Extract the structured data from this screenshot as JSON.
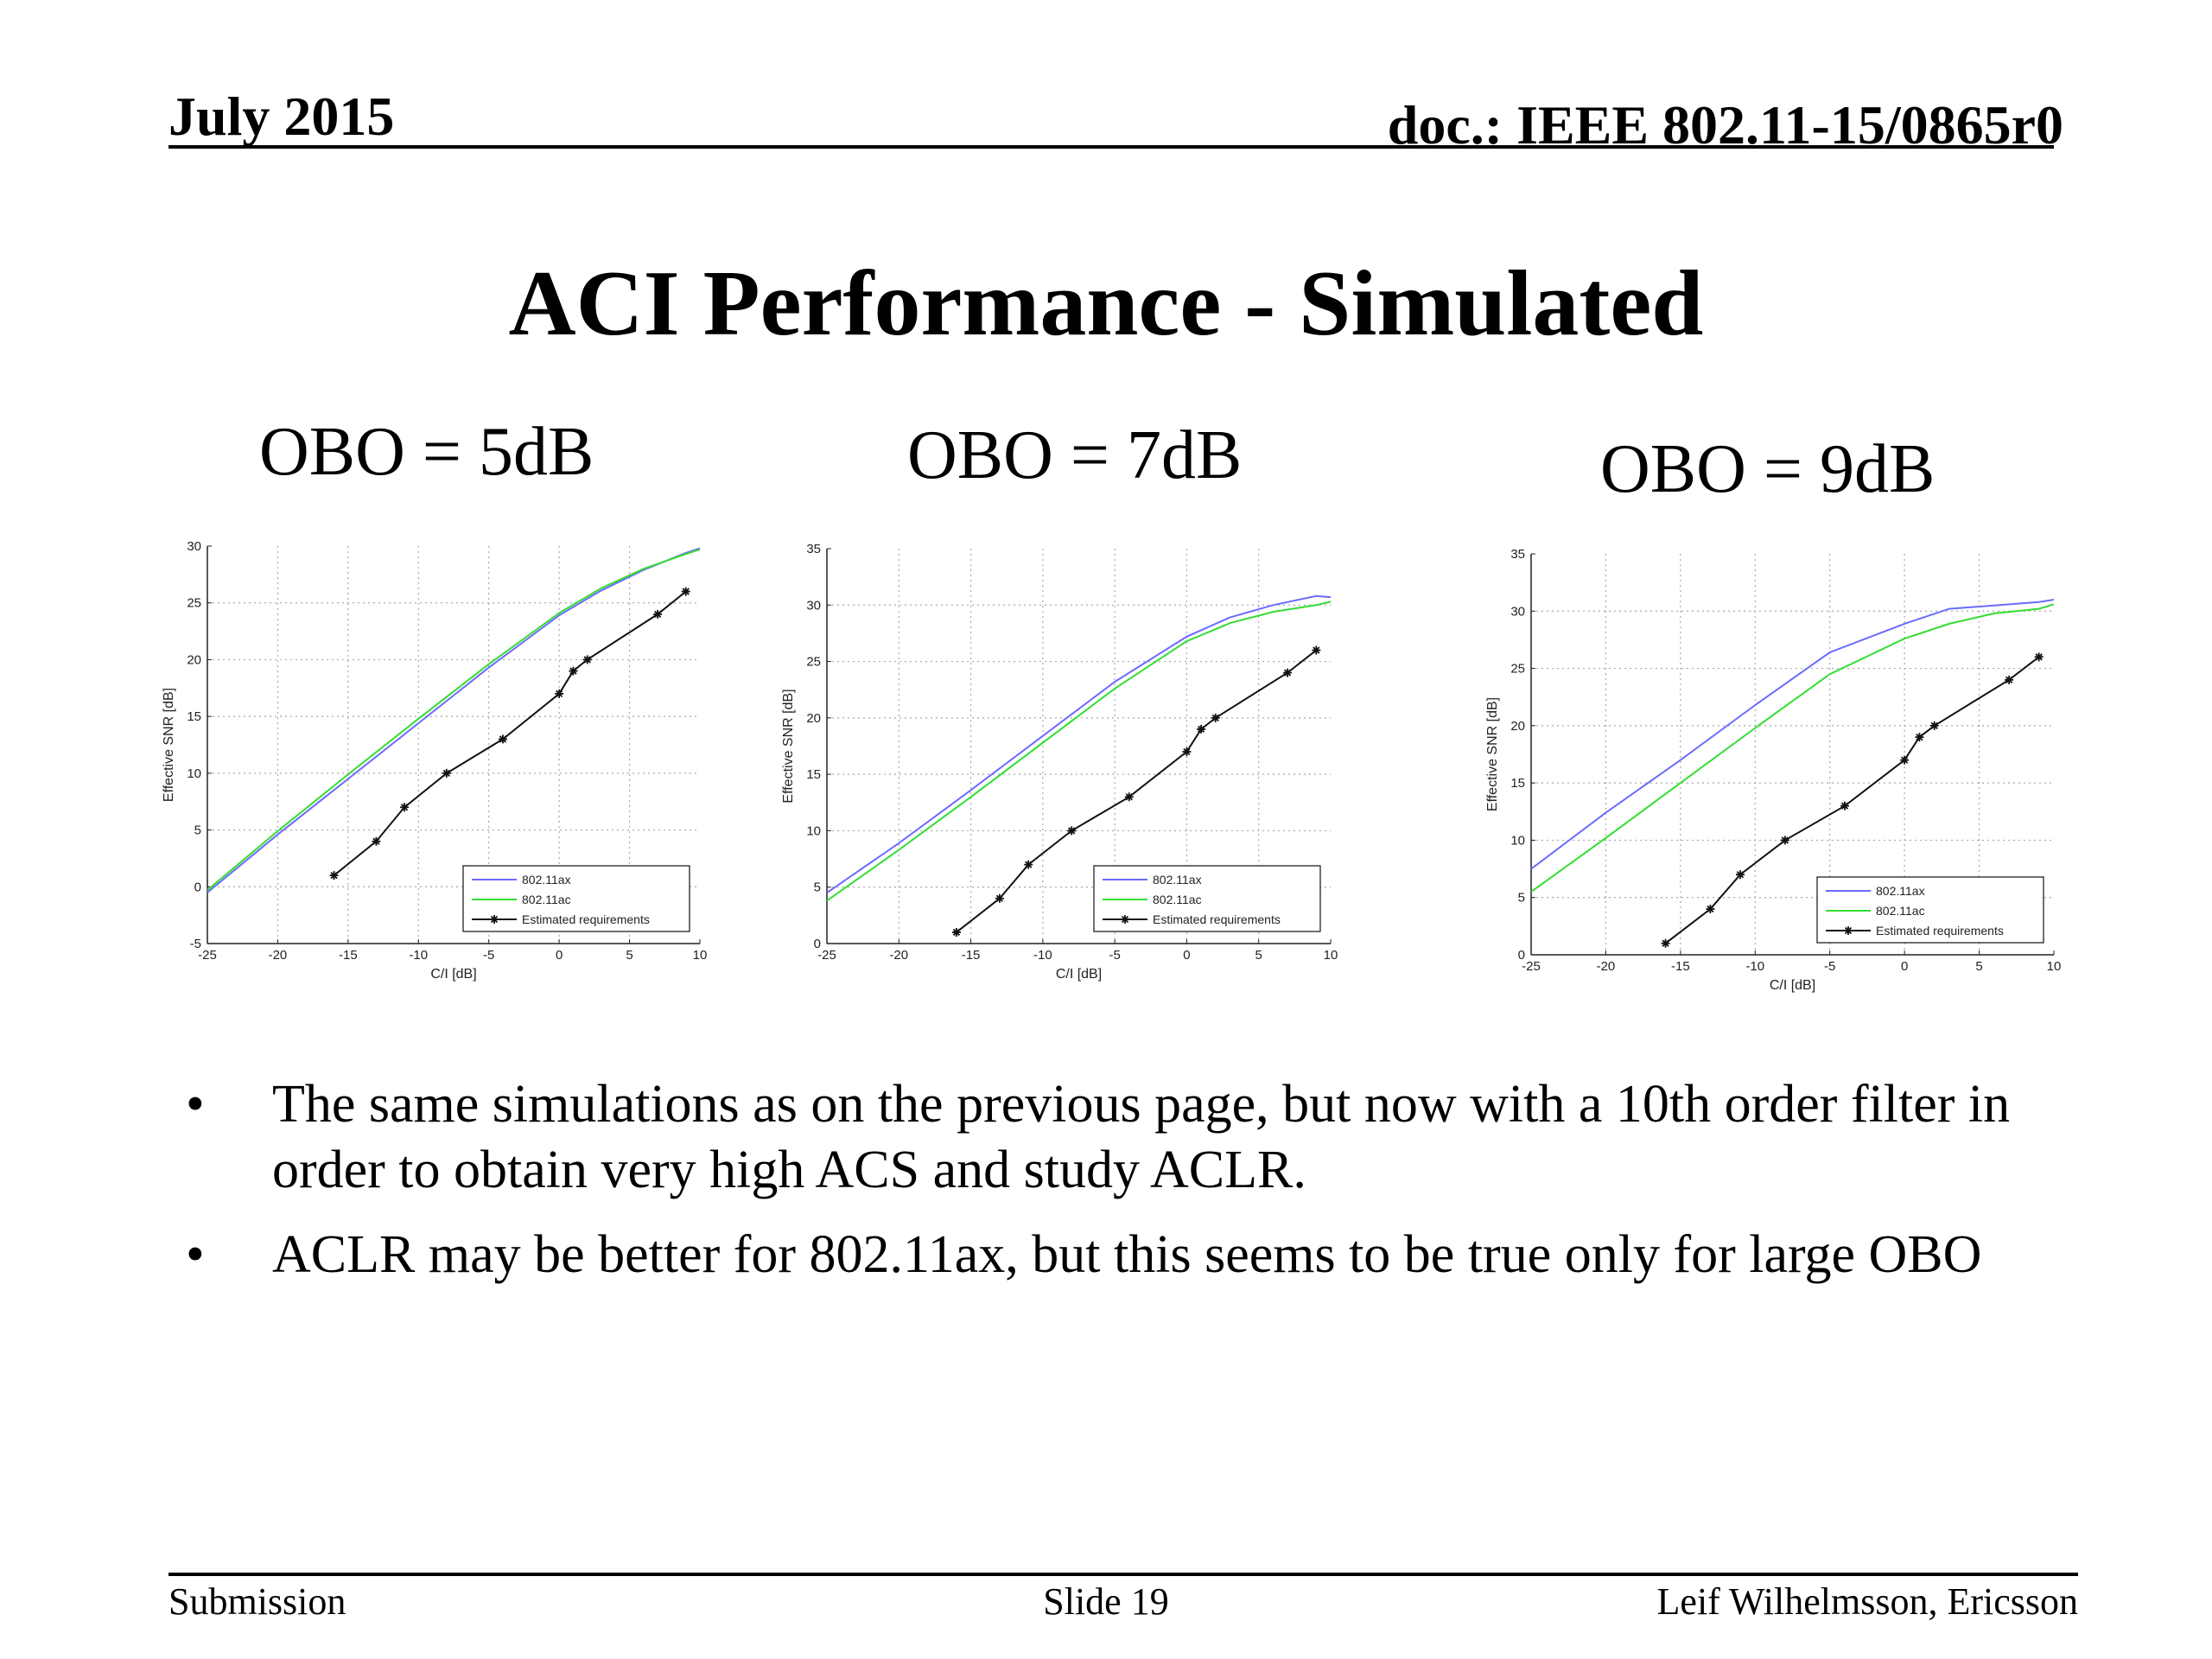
{
  "header": {
    "date": "July 2015",
    "doc": "doc.: IEEE 802.11-15/0865r0"
  },
  "title": "ACI Performance - Simulated",
  "subtitles": [
    "OBO = 5dB",
    "OBO = 7dB",
    "OBO = 9dB"
  ],
  "colors": {
    "ax": "#6b6bff",
    "ac": "#33dd33",
    "req": "#111111",
    "grid": "#a8a8a8"
  },
  "chart_data": [
    {
      "type": "line",
      "title": "OBO = 5dB",
      "xlabel": "C/I [dB]",
      "ylabel": "Effective SNR [dB]",
      "xlim": [
        -25,
        10
      ],
      "ylim": [
        -5,
        30
      ],
      "xticks": [
        -25,
        -20,
        -15,
        -10,
        -5,
        0,
        5,
        10
      ],
      "yticks": [
        -5,
        0,
        5,
        10,
        15,
        20,
        25,
        30
      ],
      "grid": true,
      "legend_position": "bottom-right",
      "series": [
        {
          "name": "802.11ax",
          "color": "#6b6bff",
          "marker": "none",
          "x": [
            -25,
            -20,
            -15,
            -10,
            -5,
            0,
            3,
            6,
            9,
            10
          ],
          "y": [
            -0.5,
            4.6,
            9.5,
            14.4,
            19.3,
            23.9,
            26.1,
            27.9,
            29.4,
            29.8
          ]
        },
        {
          "name": "802.11ac",
          "color": "#33dd33",
          "marker": "none",
          "x": [
            -25,
            -20,
            -15,
            -10,
            -5,
            0,
            3,
            6,
            9,
            10
          ],
          "y": [
            -0.3,
            4.9,
            9.9,
            14.8,
            19.6,
            24.1,
            26.3,
            28.0,
            29.3,
            29.7
          ]
        },
        {
          "name": "Estimated requirements",
          "color": "#111111",
          "marker": "star",
          "x": [
            -16,
            -13,
            -11,
            -8,
            -4,
            0,
            1,
            2,
            7,
            9
          ],
          "y": [
            1,
            4,
            7,
            10,
            13,
            17,
            19,
            20,
            24,
            26
          ]
        }
      ]
    },
    {
      "type": "line",
      "title": "OBO = 7dB",
      "xlabel": "C/I [dB]",
      "ylabel": "Effective SNR [dB]",
      "xlim": [
        -25,
        10
      ],
      "ylim": [
        0,
        35
      ],
      "xticks": [
        -25,
        -20,
        -15,
        -10,
        -5,
        0,
        5,
        10
      ],
      "yticks": [
        0,
        5,
        10,
        15,
        20,
        25,
        30,
        35
      ],
      "grid": true,
      "legend_position": "bottom-right",
      "series": [
        {
          "name": "802.11ax",
          "color": "#6b6bff",
          "marker": "none",
          "x": [
            -25,
            -20,
            -15,
            -10,
            -5,
            0,
            3,
            6,
            9,
            10
          ],
          "y": [
            4.5,
            8.9,
            13.6,
            18.4,
            23.2,
            27.2,
            28.9,
            30.0,
            30.8,
            30.7
          ]
        },
        {
          "name": "802.11ac",
          "color": "#33dd33",
          "marker": "none",
          "x": [
            -25,
            -20,
            -15,
            -10,
            -5,
            0,
            3,
            6,
            9,
            10
          ],
          "y": [
            3.8,
            8.3,
            13.0,
            17.8,
            22.6,
            26.8,
            28.4,
            29.4,
            30.0,
            30.3
          ]
        },
        {
          "name": "Estimated requirements",
          "color": "#111111",
          "marker": "star",
          "x": [
            -16,
            -13,
            -11,
            -8,
            -4,
            0,
            1,
            2,
            7,
            9
          ],
          "y": [
            1,
            4,
            7,
            10,
            13,
            17,
            19,
            20,
            24,
            26
          ]
        }
      ]
    },
    {
      "type": "line",
      "title": "OBO = 9dB",
      "xlabel": "C/I [dB]",
      "ylabel": "Effective SNR [dB]",
      "xlim": [
        -25,
        10
      ],
      "ylim": [
        0,
        35
      ],
      "xticks": [
        -25,
        -20,
        -15,
        -10,
        -5,
        0,
        5,
        10
      ],
      "yticks": [
        0,
        5,
        10,
        15,
        20,
        25,
        30,
        35
      ],
      "grid": true,
      "legend_position": "bottom-right",
      "series": [
        {
          "name": "802.11ax",
          "color": "#6b6bff",
          "marker": "none",
          "x": [
            -25,
            -20,
            -15,
            -10,
            -5,
            0,
            3,
            6,
            9,
            10
          ],
          "y": [
            7.5,
            12.4,
            17.0,
            21.8,
            26.4,
            28.9,
            30.2,
            30.5,
            30.8,
            31.0
          ]
        },
        {
          "name": "802.11ac",
          "color": "#33dd33",
          "marker": "none",
          "x": [
            -25,
            -20,
            -15,
            -10,
            -5,
            0,
            3,
            6,
            9,
            10
          ],
          "y": [
            5.5,
            10.2,
            15.0,
            19.8,
            24.5,
            27.6,
            28.9,
            29.8,
            30.2,
            30.6
          ]
        },
        {
          "name": "Estimated requirements",
          "color": "#111111",
          "marker": "star",
          "x": [
            -16,
            -13,
            -11,
            -8,
            -4,
            0,
            1,
            2,
            7,
            9
          ],
          "y": [
            1,
            4,
            7,
            10,
            13,
            17,
            19,
            20,
            24,
            26
          ]
        }
      ]
    }
  ],
  "bullets": [
    "The same simulations as on the previous page, but now with a 10th order filter in order to obtain very high ACS and study ACLR.",
    "ACLR may be better for 802.11ax, but this seems to be true only for large OBO"
  ],
  "bullet_glyph": "•",
  "footer": {
    "left": "Submission",
    "center": "Slide 19",
    "right": "Leif Wilhelmsson, Ericsson"
  }
}
